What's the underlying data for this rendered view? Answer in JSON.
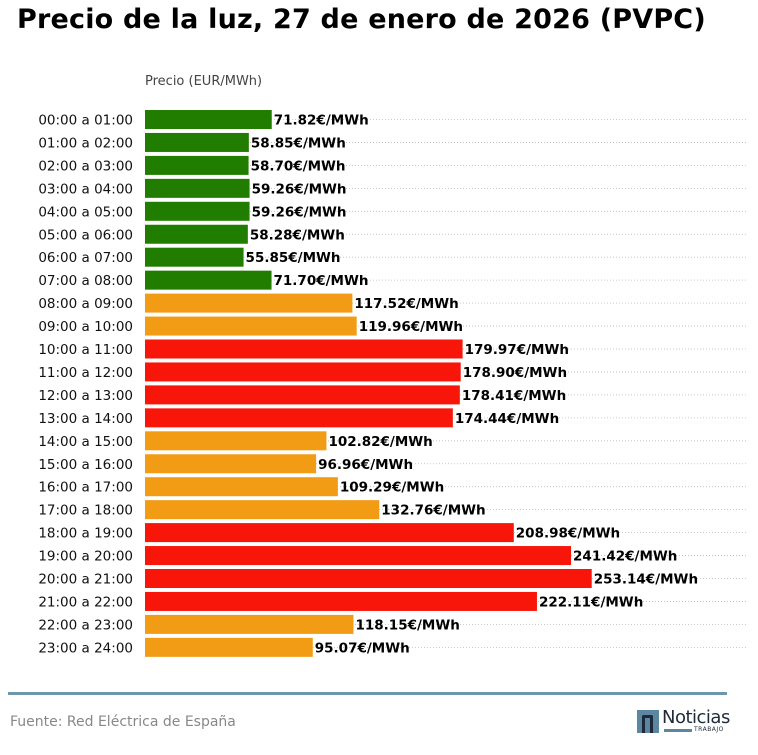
{
  "header": {
    "title": "Precio de la luz, 27 de enero de 2026 (PVPC)"
  },
  "footer": {
    "source": "Fuente: Red Eléctrica de España",
    "logo_text": "Noticias",
    "logo_subtext": "TRABAJO"
  },
  "colors": {
    "low": "#217d00",
    "mid": "#f29c16",
    "high": "#f71609",
    "divider": "#6a97ad",
    "gridline": "#bbbbbb"
  },
  "chart_data": {
    "type": "bar",
    "orientation": "horizontal",
    "title": "Precio de la luz, 27 de enero de 2026 (PVPC)",
    "xlabel": "Precio (EUR/MWh)",
    "ylabel": "",
    "unit_suffix": "€/MWh",
    "grid": "horizontal dotted",
    "xlim": [
      0,
      340
    ],
    "categories": [
      "00:00 a 01:00",
      "01:00 a 02:00",
      "02:00 a 03:00",
      "03:00 a 04:00",
      "04:00 a 05:00",
      "05:00 a 06:00",
      "06:00 a 07:00",
      "07:00 a 08:00",
      "08:00 a 09:00",
      "09:00 a 10:00",
      "10:00 a 11:00",
      "11:00 a 12:00",
      "12:00 a 13:00",
      "13:00 a 14:00",
      "14:00 a 15:00",
      "15:00 a 16:00",
      "16:00 a 17:00",
      "17:00 a 18:00",
      "18:00 a 19:00",
      "19:00 a 20:00",
      "20:00 a 21:00",
      "21:00 a 22:00",
      "22:00 a 23:00",
      "23:00 a 24:00"
    ],
    "values": [
      71.82,
      58.85,
      58.7,
      59.26,
      59.26,
      58.28,
      55.85,
      71.7,
      117.52,
      119.96,
      179.97,
      178.9,
      178.41,
      174.44,
      102.82,
      96.96,
      109.29,
      132.76,
      208.98,
      241.42,
      253.14,
      222.11,
      118.15,
      95.07
    ],
    "labels": [
      "71.82€/MWh",
      "58.85€/MWh",
      "58.70€/MWh",
      "59.26€/MWh",
      "59.26€/MWh",
      "58.28€/MWh",
      "55.85€/MWh",
      "71.70€/MWh",
      "117.52€/MWh",
      "119.96€/MWh",
      "179.97€/MWh",
      "178.90€/MWh",
      "178.41€/MWh",
      "174.44€/MWh",
      "102.82€/MWh",
      "96.96€/MWh",
      "109.29€/MWh",
      "132.76€/MWh",
      "208.98€/MWh",
      "241.42€/MWh",
      "253.14€/MWh",
      "222.11€/MWh",
      "118.15€/MWh",
      "95.07€/MWh"
    ],
    "levels": [
      "low",
      "low",
      "low",
      "low",
      "low",
      "low",
      "low",
      "low",
      "mid",
      "mid",
      "high",
      "high",
      "high",
      "high",
      "mid",
      "mid",
      "mid",
      "mid",
      "high",
      "high",
      "high",
      "high",
      "mid",
      "mid"
    ]
  }
}
